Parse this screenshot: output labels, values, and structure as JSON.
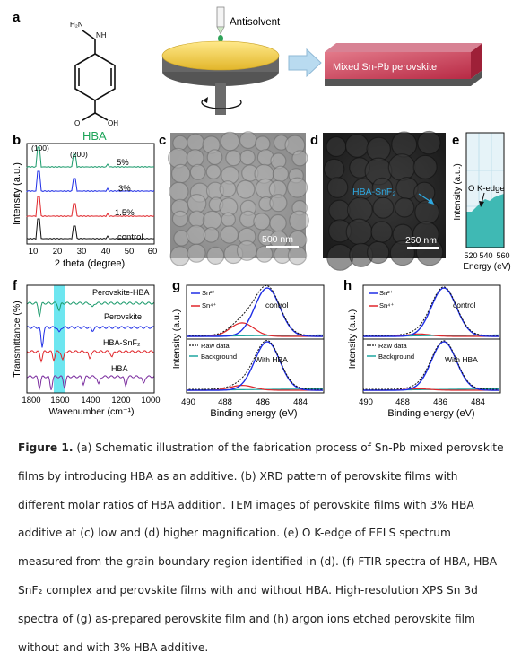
{
  "panels": {
    "a": {
      "letter": "a",
      "molecule_label": "HBA",
      "nh_label": "NH",
      "h2n_label": "H₂N",
      "o_label": "O",
      "oh_label": "OH",
      "antisolvent_label": "Antisolvent",
      "product_label": "Mixed Sn-Pb perovskite"
    },
    "b": {
      "letter": "b",
      "peak_labels": [
        "(100)",
        "(200)"
      ],
      "series_labels": [
        "5%",
        "3%",
        "1.5%",
        "control"
      ],
      "series_colors": [
        "#1a9a6b",
        "#1f2ee6",
        "#e0262b",
        "#111111"
      ],
      "xlabel": "2 theta (degree)",
      "ylabel": "Intensity (a.u.)",
      "xticks": [
        "10",
        "20",
        "30",
        "40",
        "50",
        "60"
      ]
    },
    "c": {
      "letter": "c",
      "scalebar": "500 nm"
    },
    "d": {
      "letter": "d",
      "scalebar": "250 nm",
      "annotation": "HBA-SnF₂"
    },
    "e": {
      "letter": "e",
      "annotation": "O K-edge",
      "xlabel": "Energy (eV)",
      "ylabel": "Intensity (a.u.)",
      "xticks": [
        "520",
        "540",
        "560"
      ]
    },
    "f": {
      "letter": "f",
      "series_labels": [
        "Perovskite-HBA",
        "Perovskite",
        "HBA-SnF₂",
        "HBA"
      ],
      "series_colors": [
        "#1a9a6b",
        "#1f2ee6",
        "#e0262b",
        "#7a2c9e"
      ],
      "xlabel": "Wavenumber (cm⁻¹)",
      "ylabel": "Transmittance (%)",
      "xticks": [
        "1800",
        "1600",
        "1400",
        "1200",
        "1000"
      ],
      "highlight_color": "#6de6f0"
    },
    "g": {
      "letter": "g",
      "legend": [
        "Sn²⁺",
        "Sn⁴⁺",
        "Raw data",
        "Background"
      ],
      "top_label": "control",
      "bottom_label": "With HBA",
      "xlabel": "Binding energy (eV)",
      "ylabel": "Intensity (a.u.)",
      "xticks": [
        "490",
        "488",
        "486",
        "484"
      ]
    },
    "h": {
      "letter": "h",
      "legend": [
        "Sn²⁺",
        "Sn⁴⁺",
        "Raw data",
        "Background"
      ],
      "top_label": "control",
      "bottom_label": "With HBA",
      "xlabel": "Binding energy (eV)",
      "ylabel": "Intensity (a.u.)",
      "xticks": [
        "490",
        "488",
        "486",
        "484"
      ]
    }
  },
  "caption": {
    "lead": "Figure 1.",
    "text": " (a) Schematic illustration of the fabrication process of Sn-Pb mixed perovskite films by introducing HBA as an additive. (b) XRD pattern of perovskite films with different molar ratios of HBA addition. TEM images of perovskite films with 3% HBA additive at (c) low and (d) higher magnification. (e) O K-edge of EELS spectrum measured from the grain boundary region identified in (d). (f) FTIR spectra of HBA, HBA-SnF₂ complex and perovskite films with and without HBA. High-resolution XPS Sn 3d spectra of (g) as-prepared perovskite film and (h) argon ions etched perovskite film without and with 3% HBA additive."
  }
}
